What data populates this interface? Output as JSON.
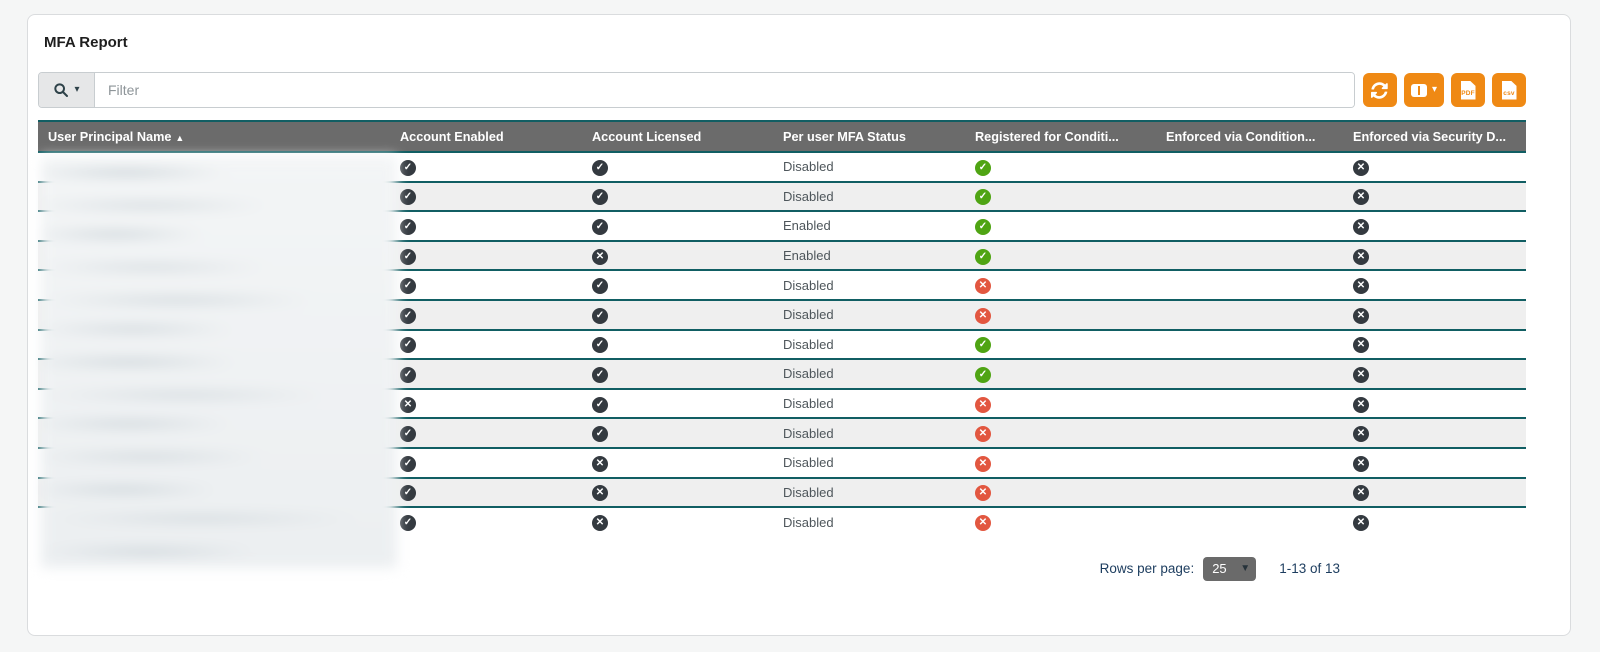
{
  "page": {
    "title": "MFA Report"
  },
  "toolbar": {
    "filter_placeholder": "Filter",
    "buttons": {
      "refresh": {
        "icon": "sync-icon"
      },
      "columns": {
        "icon": "columns-icon"
      },
      "export_pdf": {
        "icon": "file-pdf-icon",
        "file_label": "PDF"
      },
      "export_csv": {
        "icon": "file-csv-icon",
        "file_label": "csv"
      }
    }
  },
  "table": {
    "columns": [
      {
        "label": "User Principal Name",
        "sort_indicator": "▲"
      },
      {
        "label": "Account Enabled"
      },
      {
        "label": "Account Licensed"
      },
      {
        "label": "Per user MFA Status"
      },
      {
        "label": "Registered for Conditi..."
      },
      {
        "label": "Enforced via Condition..."
      },
      {
        "label": "Enforced via Security D..."
      }
    ],
    "rows": [
      {
        "upn": "",
        "enabled": "yes",
        "licensed": "yes",
        "mfa": "Disabled",
        "registered": "yes",
        "enforced_ca": "",
        "enforced_sd": "no"
      },
      {
        "upn": "",
        "enabled": "yes",
        "licensed": "yes",
        "mfa": "Disabled",
        "registered": "yes",
        "enforced_ca": "",
        "enforced_sd": "no"
      },
      {
        "upn": "",
        "enabled": "yes",
        "licensed": "yes",
        "mfa": "Enabled",
        "registered": "yes",
        "enforced_ca": "",
        "enforced_sd": "no"
      },
      {
        "upn": "",
        "enabled": "yes",
        "licensed": "no",
        "mfa": "Enabled",
        "registered": "yes",
        "enforced_ca": "",
        "enforced_sd": "no"
      },
      {
        "upn": "",
        "enabled": "yes",
        "licensed": "yes",
        "mfa": "Disabled",
        "registered": "no",
        "enforced_ca": "",
        "enforced_sd": "no"
      },
      {
        "upn": "",
        "enabled": "yes",
        "licensed": "yes",
        "mfa": "Disabled",
        "registered": "no",
        "enforced_ca": "",
        "enforced_sd": "no"
      },
      {
        "upn": "",
        "enabled": "yes",
        "licensed": "yes",
        "mfa": "Disabled",
        "registered": "yes",
        "enforced_ca": "",
        "enforced_sd": "no"
      },
      {
        "upn": "",
        "enabled": "yes",
        "licensed": "yes",
        "mfa": "Disabled",
        "registered": "yes",
        "enforced_ca": "",
        "enforced_sd": "no"
      },
      {
        "upn": "",
        "enabled": "no",
        "licensed": "yes",
        "mfa": "Disabled",
        "registered": "no",
        "enforced_ca": "",
        "enforced_sd": "no"
      },
      {
        "upn": "",
        "enabled": "yes",
        "licensed": "yes",
        "mfa": "Disabled",
        "registered": "no",
        "enforced_ca": "",
        "enforced_sd": "no"
      },
      {
        "upn": "",
        "enabled": "yes",
        "licensed": "no",
        "mfa": "Disabled",
        "registered": "no",
        "enforced_ca": "",
        "enforced_sd": "no"
      },
      {
        "upn": "",
        "enabled": "yes",
        "licensed": "no",
        "mfa": "Disabled",
        "registered": "no",
        "enforced_ca": "",
        "enforced_sd": "no"
      },
      {
        "upn": "",
        "enabled": "yes",
        "licensed": "no",
        "mfa": "Disabled",
        "registered": "no",
        "enforced_ca": "",
        "enforced_sd": "no"
      }
    ]
  },
  "pagination": {
    "rows_per_page_label": "Rows per page:",
    "rows_per_page_value": "25",
    "range_text": "1-13 of 13"
  },
  "colors": {
    "accent_orange": "#ef8914",
    "header_bg": "#6b6b6b",
    "separator_teal": "#115e63",
    "icon_dark": "#343a40",
    "icon_green": "#4fa413",
    "icon_red": "#e25740",
    "row_alt": "#efefef"
  }
}
